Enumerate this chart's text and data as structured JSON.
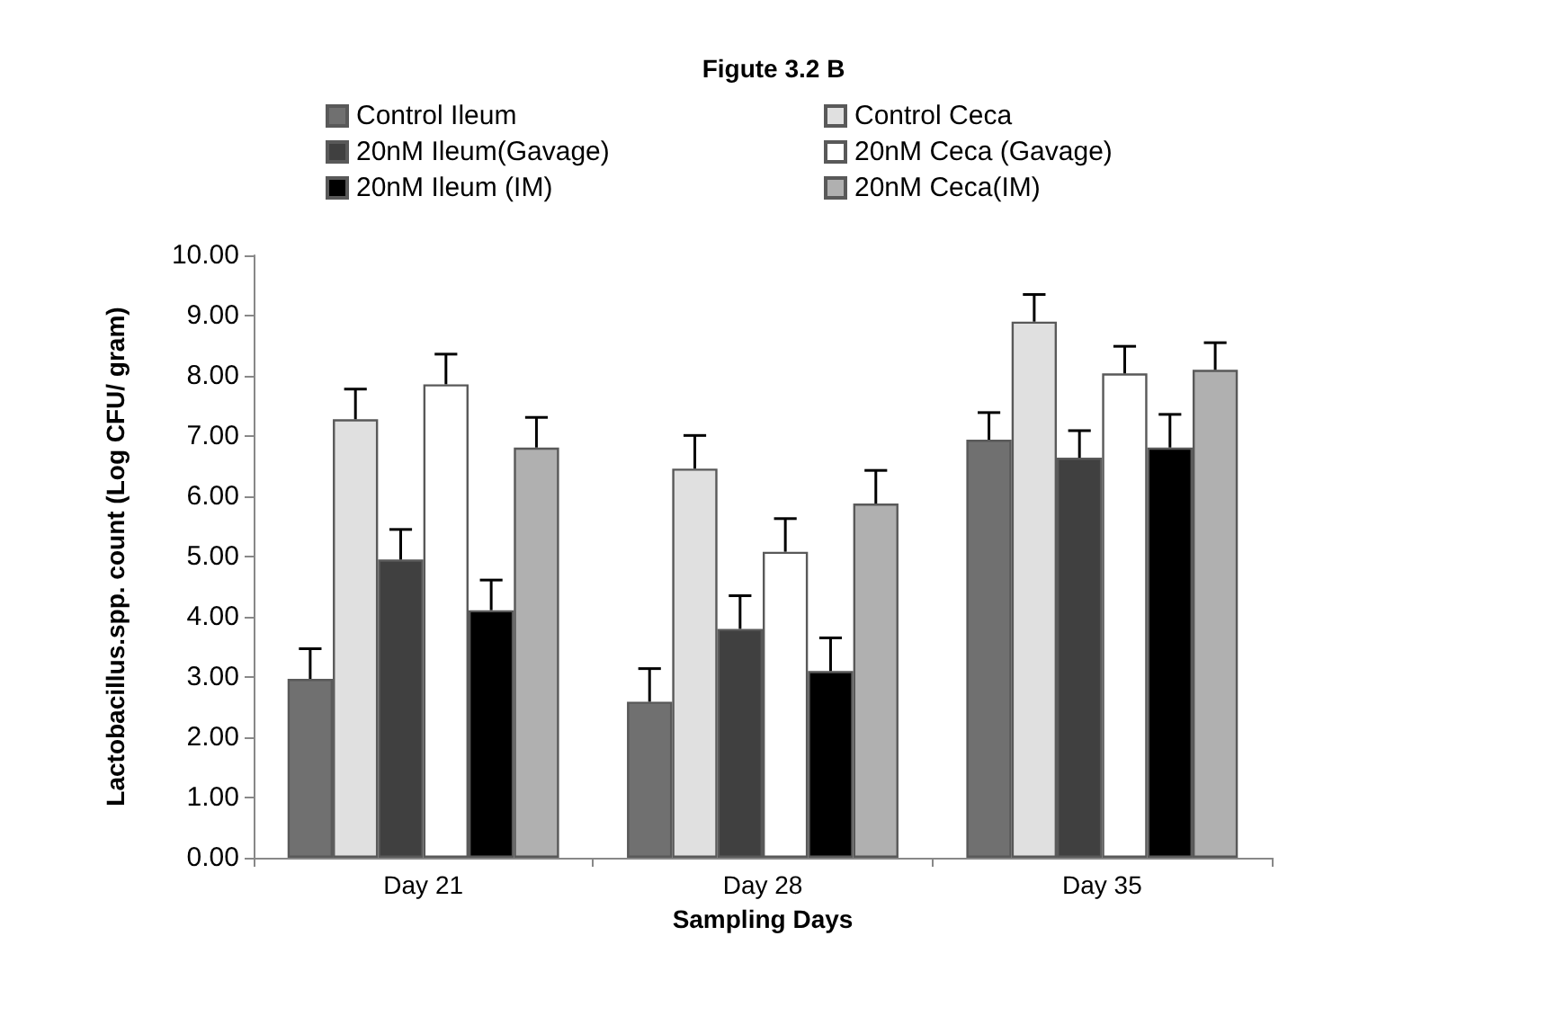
{
  "chart_data": {
    "type": "bar",
    "title": "Figute 3.2 B",
    "xlabel": "Sampling Days",
    "ylabel": "Lactobacillus.spp. count (Log CFU/ gram)",
    "categories": [
      "Day 21",
      "Day 28",
      "Day 35"
    ],
    "series": [
      {
        "name": "Control Ileum",
        "color": "#707070",
        "values": [
          2.97,
          2.59,
          6.94
        ],
        "errors": [
          0.5,
          0.55,
          0.45
        ]
      },
      {
        "name": "Control Ceca",
        "color": "#e0e0e0",
        "values": [
          7.28,
          6.46,
          8.9
        ],
        "errors": [
          0.5,
          0.55,
          0.45
        ]
      },
      {
        "name": "20nM Ileum(Gavage)",
        "color": "#404040",
        "values": [
          4.95,
          3.8,
          6.64
        ],
        "errors": [
          0.5,
          0.55,
          0.45
        ]
      },
      {
        "name": "20nM Ceca (Gavage)",
        "color": "#ffffff",
        "values": [
          7.86,
          5.08,
          8.04
        ],
        "errors": [
          0.5,
          0.55,
          0.45
        ]
      },
      {
        "name": "20nM Ileum (IM)",
        "color": "#000000",
        "values": [
          4.11,
          3.1,
          6.81
        ],
        "errors": [
          0.5,
          0.55,
          0.55
        ]
      },
      {
        "name": "20nM Ceca(IM)",
        "color": "#b0b0b0",
        "values": [
          6.81,
          5.88,
          8.1
        ],
        "errors": [
          0.5,
          0.55,
          0.45
        ]
      }
    ],
    "ylim": [
      0,
      10
    ],
    "yticks": [
      {
        "value": 0,
        "label": "0.00"
      },
      {
        "value": 1,
        "label": "1.00"
      },
      {
        "value": 2,
        "label": "2.00"
      },
      {
        "value": 3,
        "label": "3.00"
      },
      {
        "value": 4,
        "label": "4.00"
      },
      {
        "value": 5,
        "label": "5.00"
      },
      {
        "value": 6,
        "label": "6.00"
      },
      {
        "value": 7,
        "label": "7.00"
      },
      {
        "value": 8,
        "label": "8.00"
      },
      {
        "value": 9,
        "label": "9.00"
      },
      {
        "value": 10,
        "label": "10.00"
      }
    ],
    "grid": false,
    "legend": "top"
  }
}
